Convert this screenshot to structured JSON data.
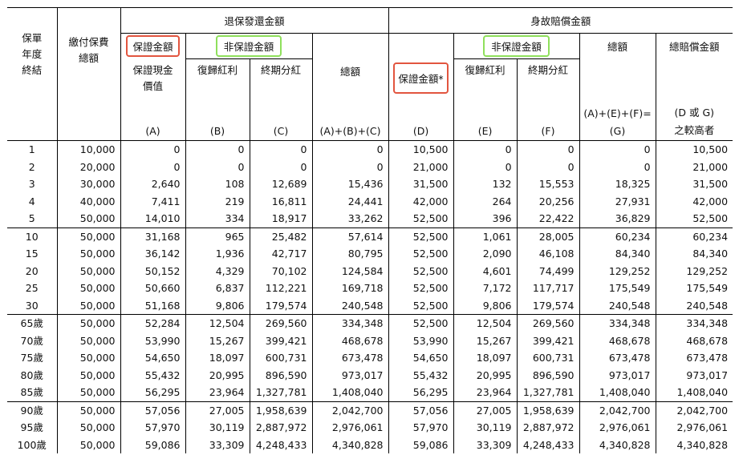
{
  "headers": {
    "year_label": [
      "保單",
      "年度",
      "終結"
    ],
    "premium_label": [
      "繳付保費",
      "總額"
    ],
    "surrender_group": "退保發還金額",
    "death_group": "身故賠償金額",
    "guaranteed": "保證金額",
    "non_guaranteed": "非保證金額",
    "a_label": [
      "保證現金",
      "價值"
    ],
    "b_label": "復歸紅利",
    "c_label": "終期分紅",
    "total_label": "總額",
    "d_label": "保證金額*",
    "e_label": "復歸紅利",
    "f_label": "終期分紅",
    "g_label": "總額",
    "h_label": "總賠償金額",
    "a_letter": "(A)",
    "b_letter": "(B)",
    "c_letter": "(C)",
    "abc_letter": "(A)+(B)+(C)",
    "d_letter": "(D)",
    "e_letter": "(E)",
    "f_letter": "(F)",
    "g_formula": "(A)+(E)+(F)=",
    "g_letter": "(G)",
    "h_formula": "(D 或 G)",
    "h_note": "之較高者"
  },
  "groups": [
    [
      [
        "1",
        "10,000",
        "0",
        "0",
        "0",
        "0",
        "10,500",
        "0",
        "0",
        "0",
        "10,500"
      ],
      [
        "2",
        "20,000",
        "0",
        "0",
        "0",
        "0",
        "21,000",
        "0",
        "0",
        "0",
        "21,000"
      ],
      [
        "3",
        "30,000",
        "2,640",
        "108",
        "12,689",
        "15,436",
        "31,500",
        "132",
        "15,553",
        "18,325",
        "31,500"
      ],
      [
        "4",
        "40,000",
        "7,411",
        "219",
        "16,811",
        "24,441",
        "42,000",
        "264",
        "20,256",
        "27,931",
        "42,000"
      ],
      [
        "5",
        "50,000",
        "14,010",
        "334",
        "18,917",
        "33,262",
        "52,500",
        "396",
        "22,422",
        "36,829",
        "52,500"
      ]
    ],
    [
      [
        "10",
        "50,000",
        "31,168",
        "965",
        "25,482",
        "57,614",
        "52,500",
        "1,061",
        "28,005",
        "60,234",
        "60,234"
      ],
      [
        "15",
        "50,000",
        "36,142",
        "1,936",
        "42,717",
        "80,795",
        "52,500",
        "2,090",
        "46,108",
        "84,340",
        "84,340"
      ],
      [
        "20",
        "50,000",
        "50,152",
        "4,329",
        "70,102",
        "124,584",
        "52,500",
        "4,601",
        "74,499",
        "129,252",
        "129,252"
      ],
      [
        "25",
        "50,000",
        "50,660",
        "6,837",
        "112,221",
        "169,718",
        "52,500",
        "7,172",
        "117,717",
        "175,549",
        "175,549"
      ],
      [
        "30",
        "50,000",
        "51,168",
        "9,806",
        "179,574",
        "240,548",
        "52,500",
        "9,806",
        "179,574",
        "240,548",
        "240,548"
      ]
    ],
    [
      [
        "65歲",
        "50,000",
        "52,284",
        "12,504",
        "269,560",
        "334,348",
        "52,500",
        "12,504",
        "269,560",
        "334,348",
        "334,348"
      ],
      [
        "70歲",
        "50,000",
        "53,990",
        "15,267",
        "399,421",
        "468,678",
        "53,990",
        "15,267",
        "399,421",
        "468,678",
        "468,678"
      ],
      [
        "75歲",
        "50,000",
        "54,650",
        "18,097",
        "600,731",
        "673,478",
        "54,650",
        "18,097",
        "600,731",
        "673,478",
        "673,478"
      ],
      [
        "80歲",
        "50,000",
        "55,432",
        "20,995",
        "896,590",
        "973,017",
        "55,432",
        "20,995",
        "896,590",
        "973,017",
        "973,017"
      ],
      [
        "85歲",
        "50,000",
        "56,295",
        "23,964",
        "1,327,781",
        "1,408,040",
        "56,295",
        "23,964",
        "1,327,781",
        "1,408,040",
        "1,408,040"
      ]
    ],
    [
      [
        "90歲",
        "50,000",
        "57,056",
        "27,005",
        "1,958,639",
        "2,042,700",
        "57,056",
        "27,005",
        "1,958,639",
        "2,042,700",
        "2,042,700"
      ],
      [
        "95歲",
        "50,000",
        "57,970",
        "30,119",
        "2,887,972",
        "2,976,061",
        "57,970",
        "30,119",
        "2,887,972",
        "2,976,061",
        "2,976,061"
      ],
      [
        "100歲",
        "50,000",
        "59,086",
        "33,309",
        "4,248,433",
        "4,340,828",
        "59,086",
        "33,309",
        "4,248,433",
        "4,340,828",
        "4,340,828"
      ]
    ]
  ]
}
